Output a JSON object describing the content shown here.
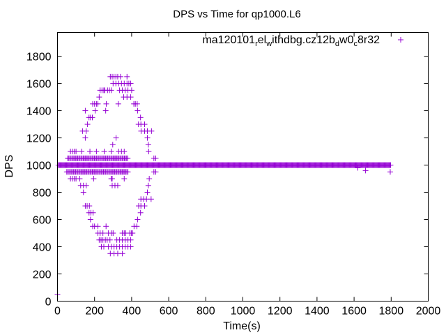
{
  "chart_data": {
    "type": "scatter",
    "title": "DPS vs Time for qp1000.L6",
    "xlabel": "Time(s)",
    "ylabel": "DPS",
    "xlim": [
      0,
      2000
    ],
    "ylim": [
      0,
      1975
    ],
    "xticks": [
      "0",
      "200",
      "400",
      "600",
      "800",
      "1000",
      "1200",
      "1400",
      "1600",
      "1800",
      "2000"
    ],
    "yticks": [
      "0",
      "200",
      "400",
      "600",
      "800",
      "1000",
      "1200",
      "1400",
      "1600",
      "1800"
    ],
    "grid": false,
    "legend_placement": "top-right",
    "series": [
      {
        "name": "ma120101_rel_withdbg.cz12b_dw0_c8r32",
        "name_parts": [
          "ma120101",
          "r",
          "el",
          "w",
          "ithdbg.cz12b",
          "d",
          "w0",
          "c",
          "8r32"
        ],
        "color": "#9400d3",
        "marker": "+",
        "dense_runs": [
          {
            "x_start": 5,
            "x_end": 1800,
            "step": 4,
            "value": 1000
          },
          {
            "x_start": 55,
            "x_end": 380,
            "step": 6,
            "value": 1050
          },
          {
            "x_start": 50,
            "x_end": 380,
            "step": 6,
            "value": 950
          }
        ],
        "points": [
          [
            0,
            50
          ],
          [
            285,
            1650
          ],
          [
            295,
            1650
          ],
          [
            305,
            1650
          ],
          [
            315,
            1650
          ],
          [
            325,
            1650
          ],
          [
            340,
            1650
          ],
          [
            375,
            1650
          ],
          [
            300,
            1600
          ],
          [
            315,
            1600
          ],
          [
            330,
            1600
          ],
          [
            345,
            1600
          ],
          [
            360,
            1600
          ],
          [
            375,
            1600
          ],
          [
            385,
            1600
          ],
          [
            395,
            1600
          ],
          [
            230,
            1550
          ],
          [
            240,
            1550
          ],
          [
            250,
            1550
          ],
          [
            255,
            1550
          ],
          [
            270,
            1550
          ],
          [
            280,
            1550
          ],
          [
            290,
            1550
          ],
          [
            335,
            1550
          ],
          [
            350,
            1550
          ],
          [
            365,
            1550
          ],
          [
            380,
            1550
          ],
          [
            400,
            1550
          ],
          [
            225,
            1500
          ],
          [
            357,
            1500
          ],
          [
            375,
            1500
          ],
          [
            395,
            1500
          ],
          [
            190,
            1450
          ],
          [
            200,
            1450
          ],
          [
            210,
            1450
          ],
          [
            218,
            1450
          ],
          [
            263,
            1450
          ],
          [
            328,
            1450
          ],
          [
            412,
            1450
          ],
          [
            420,
            1450
          ],
          [
            430,
            1450
          ],
          [
            150,
            1400
          ],
          [
            203,
            1400
          ],
          [
            260,
            1400
          ],
          [
            432,
            1400
          ],
          [
            170,
            1350
          ],
          [
            178,
            1350
          ],
          [
            188,
            1350
          ],
          [
            448,
            1350
          ],
          [
            162,
            1300
          ],
          [
            437,
            1300
          ],
          [
            450,
            1300
          ],
          [
            470,
            1300
          ],
          [
            135,
            1250
          ],
          [
            155,
            1250
          ],
          [
            451,
            1250
          ],
          [
            470,
            1250
          ],
          [
            485,
            1250
          ],
          [
            507,
            1250
          ],
          [
            150,
            1200
          ],
          [
            316,
            1200
          ],
          [
            485,
            1200
          ],
          [
            298,
            1150
          ],
          [
            490,
            1150
          ],
          [
            70,
            1100
          ],
          [
            80,
            1100
          ],
          [
            90,
            1100
          ],
          [
            100,
            1100
          ],
          [
            130,
            1100
          ],
          [
            175,
            1100
          ],
          [
            210,
            1100
          ],
          [
            252,
            1100
          ],
          [
            290,
            1100
          ],
          [
            330,
            1100
          ],
          [
            345,
            1100
          ],
          [
            360,
            1100
          ],
          [
            492,
            1100
          ],
          [
            520,
            1050
          ],
          [
            530,
            1050
          ],
          [
            520,
            950
          ],
          [
            530,
            950
          ],
          [
            70,
            900
          ],
          [
            80,
            900
          ],
          [
            90,
            900
          ],
          [
            100,
            900
          ],
          [
            120,
            900
          ],
          [
            195,
            900
          ],
          [
            290,
            900
          ],
          [
            295,
            900
          ],
          [
            360,
            900
          ],
          [
            495,
            900
          ],
          [
            125,
            850
          ],
          [
            140,
            850
          ],
          [
            155,
            850
          ],
          [
            295,
            850
          ],
          [
            310,
            850
          ],
          [
            325,
            850
          ],
          [
            490,
            850
          ],
          [
            140,
            800
          ],
          [
            485,
            800
          ],
          [
            450,
            750
          ],
          [
            465,
            750
          ],
          [
            480,
            750
          ],
          [
            505,
            750
          ],
          [
            150,
            700
          ],
          [
            160,
            700
          ],
          [
            172,
            700
          ],
          [
            438,
            700
          ],
          [
            450,
            700
          ],
          [
            470,
            700
          ],
          [
            170,
            650
          ],
          [
            180,
            650
          ],
          [
            192,
            650
          ],
          [
            448,
            650
          ],
          [
            178,
            600
          ],
          [
            432,
            600
          ],
          [
            190,
            550
          ],
          [
            200,
            550
          ],
          [
            218,
            550
          ],
          [
            262,
            550
          ],
          [
            413,
            550
          ],
          [
            428,
            550
          ],
          [
            218,
            500
          ],
          [
            230,
            500
          ],
          [
            245,
            500
          ],
          [
            275,
            500
          ],
          [
            290,
            500
          ],
          [
            300,
            500
          ],
          [
            350,
            500
          ],
          [
            360,
            500
          ],
          [
            368,
            500
          ],
          [
            390,
            500
          ],
          [
            398,
            500
          ],
          [
            405,
            500
          ],
          [
            225,
            450
          ],
          [
            235,
            450
          ],
          [
            245,
            450
          ],
          [
            258,
            450
          ],
          [
            268,
            450
          ],
          [
            283,
            450
          ],
          [
            320,
            450
          ],
          [
            335,
            450
          ],
          [
            350,
            450
          ],
          [
            365,
            450
          ],
          [
            380,
            450
          ],
          [
            395,
            450
          ],
          [
            237,
            400
          ],
          [
            250,
            400
          ],
          [
            275,
            400
          ],
          [
            290,
            400
          ],
          [
            305,
            400
          ],
          [
            320,
            400
          ],
          [
            335,
            400
          ],
          [
            350,
            400
          ],
          [
            365,
            400
          ],
          [
            380,
            400
          ],
          [
            395,
            400
          ],
          [
            285,
            350
          ],
          [
            305,
            350
          ],
          [
            325,
            350
          ],
          [
            350,
            350
          ],
          [
            1620,
            980
          ],
          [
            1662,
            960
          ],
          [
            1795,
            950
          ]
        ]
      }
    ]
  }
}
